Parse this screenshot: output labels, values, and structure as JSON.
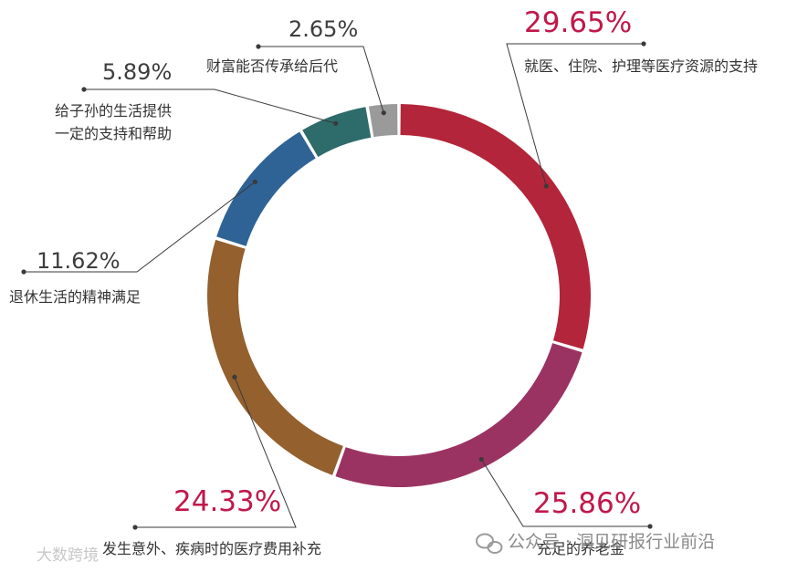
{
  "chart_data": {
    "type": "pie",
    "title": "",
    "slices": [
      {
        "label": "就医、住院、护理等医疗资源的支持",
        "value": 29.65,
        "value_label": "29.65%",
        "color": "#b3253a",
        "label_color": "#c0184a"
      },
      {
        "label": "充足的养老金",
        "value": 25.86,
        "value_label": "25.86%",
        "color": "#9b3362",
        "label_color": "#c0184a"
      },
      {
        "label": "发生意外、疾病时的医疗费用补充",
        "value": 24.33,
        "value_label": "24.33%",
        "color": "#93602e",
        "label_color": "#c0184a"
      },
      {
        "label": "退休生活的精神满足",
        "value": 11.62,
        "value_label": "11.62%",
        "color": "#2f6396",
        "label_color": "#3d3d3d"
      },
      {
        "label": "给子孙的生活提供\n一定的支持和帮助",
        "value": 5.89,
        "value_label": "5.89%",
        "color": "#2e6b6b",
        "label_color": "#3d3d3d"
      },
      {
        "label": "财富能否传承给后代",
        "value": 2.65,
        "value_label": "2.65%",
        "color": "#9a9a9a",
        "label_color": "#3d3d3d"
      }
    ],
    "legend": "none"
  },
  "watermarks": {
    "bottom_left": "大数跨境",
    "bottom_right": "公众号 · 洞见研报行业前沿"
  }
}
